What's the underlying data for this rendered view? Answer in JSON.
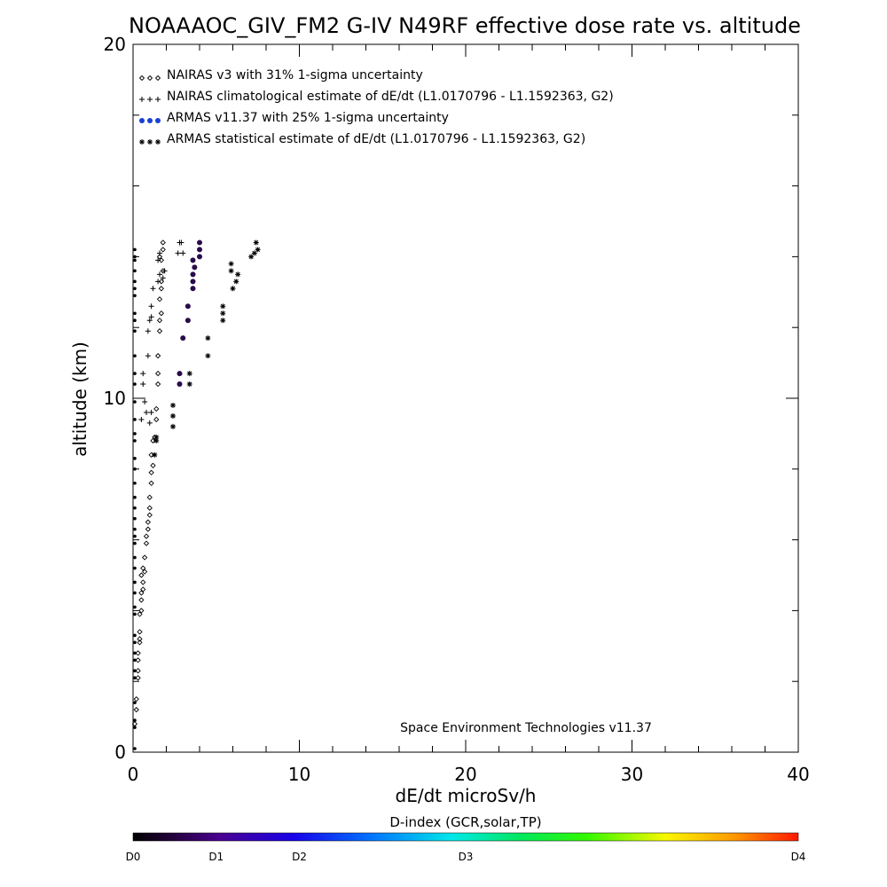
{
  "chart_data": {
    "type": "scatter",
    "title": "NOAAAOC_GIV_FM2 G-IV   N49RF  effective dose rate vs. altitude",
    "xlabel": "dE/dt microSv/h",
    "ylabel": "altitude (km)",
    "xlim": [
      0,
      40
    ],
    "ylim": [
      0,
      20
    ],
    "x_ticks": [
      "0",
      "10",
      "20",
      "30",
      "40"
    ],
    "y_ticks": [
      "0",
      "10",
      "20"
    ],
    "legend": [
      {
        "text": "NAIRAS v3 with 31% 1-sigma uncertainty",
        "marker": "diamond",
        "glyph": "◇◇◇",
        "color": "#000000"
      },
      {
        "text": "NAIRAS climatological estimate of dE/dt (L1.0170796 - L1.1592363, G2)",
        "marker": "plus",
        "glyph": "+++",
        "color": "#000000"
      },
      {
        "text": "ARMAS v11.37 with 25% 1-sigma uncertainty",
        "marker": "dot",
        "glyph": "●●●",
        "color": "#1a3fd6"
      },
      {
        "text": "ARMAS statistical estimate of dE/dt (L1.0170796 - L1.1592363, G2)",
        "marker": "asterisk",
        "glyph": "***",
        "color": "#000000"
      }
    ],
    "legend_position": "top-left",
    "annotation": "Space Environment Technologies v11.37",
    "colorbar": {
      "title": "D-index (GCR,solar,TP)",
      "labels": [
        {
          "text": "D0",
          "value": 0
        },
        {
          "text": "D1",
          "value": 0.125
        },
        {
          "text": "D2",
          "value": 0.25
        },
        {
          "text": "D3",
          "value": 0.5
        },
        {
          "text": "D4",
          "value": 1.0
        }
      ]
    },
    "series": [
      {
        "name": "NAIRAS v3 with 31% 1-sigma uncertainty",
        "marker": "diamond",
        "color": "#000000",
        "points": [
          [
            0.1,
            0.8
          ],
          [
            0.2,
            1.2
          ],
          [
            0.2,
            1.5
          ],
          [
            0.3,
            2.1
          ],
          [
            0.3,
            2.3
          ],
          [
            0.3,
            2.6
          ],
          [
            0.3,
            2.8
          ],
          [
            0.4,
            3.1
          ],
          [
            0.4,
            3.2
          ],
          [
            0.4,
            3.4
          ],
          [
            0.4,
            3.9
          ],
          [
            0.5,
            4.0
          ],
          [
            0.5,
            4.3
          ],
          [
            0.5,
            4.5
          ],
          [
            0.6,
            4.6
          ],
          [
            0.6,
            4.8
          ],
          [
            0.5,
            5.0
          ],
          [
            0.6,
            5.2
          ],
          [
            0.7,
            5.1
          ],
          [
            0.7,
            5.5
          ],
          [
            0.8,
            5.9
          ],
          [
            0.8,
            6.1
          ],
          [
            0.9,
            6.3
          ],
          [
            0.9,
            6.5
          ],
          [
            1.0,
            6.7
          ],
          [
            1.0,
            6.9
          ],
          [
            1.0,
            7.2
          ],
          [
            1.1,
            7.6
          ],
          [
            1.1,
            7.9
          ],
          [
            1.2,
            8.1
          ],
          [
            1.1,
            8.4
          ],
          [
            1.2,
            8.8
          ],
          [
            1.3,
            8.9
          ],
          [
            1.4,
            9.4
          ],
          [
            1.4,
            9.7
          ],
          [
            1.5,
            10.4
          ],
          [
            1.5,
            10.7
          ],
          [
            1.5,
            11.2
          ],
          [
            1.6,
            11.9
          ],
          [
            1.6,
            12.2
          ],
          [
            1.7,
            12.4
          ],
          [
            1.6,
            12.8
          ],
          [
            1.7,
            13.1
          ],
          [
            1.7,
            13.3
          ],
          [
            1.8,
            13.6
          ],
          [
            1.7,
            13.9
          ],
          [
            1.6,
            14.0
          ],
          [
            1.8,
            14.2
          ],
          [
            1.8,
            14.4
          ]
        ]
      },
      {
        "name": "NAIRAS climatological estimate of dE/dt (L1.0170796 - L1.1592363, G2)",
        "marker": "plus",
        "color": "#000000",
        "points": [
          [
            0.5,
            9.4
          ],
          [
            0.7,
            9.9
          ],
          [
            0.8,
            9.6
          ],
          [
            1.0,
            9.3
          ],
          [
            1.1,
            9.6
          ],
          [
            0.6,
            10.4
          ],
          [
            0.6,
            10.7
          ],
          [
            0.9,
            11.2
          ],
          [
            0.9,
            11.9
          ],
          [
            1.0,
            12.2
          ],
          [
            1.1,
            12.3
          ],
          [
            1.1,
            12.6
          ],
          [
            1.2,
            13.1
          ],
          [
            1.5,
            13.3
          ],
          [
            1.6,
            13.5
          ],
          [
            1.8,
            13.4
          ],
          [
            1.9,
            13.6
          ],
          [
            1.5,
            13.9
          ],
          [
            1.6,
            14.1
          ],
          [
            2.7,
            14.1
          ],
          [
            2.8,
            14.4
          ],
          [
            3.0,
            14.1
          ],
          [
            2.9,
            14.4
          ]
        ]
      },
      {
        "name": "ARMAS v11.37 with 25% 1-sigma uncertainty",
        "marker": "dot",
        "color": "#2a0a4a",
        "points": [
          [
            2.8,
            10.4
          ],
          [
            2.8,
            10.7
          ],
          [
            3.0,
            11.7
          ],
          [
            3.3,
            12.2
          ],
          [
            3.3,
            12.6
          ],
          [
            3.6,
            13.1
          ],
          [
            3.6,
            13.3
          ],
          [
            3.6,
            13.5
          ],
          [
            3.7,
            13.7
          ],
          [
            3.6,
            13.9
          ],
          [
            4.0,
            14.0
          ],
          [
            4.0,
            14.2
          ],
          [
            4.0,
            14.4
          ]
        ]
      },
      {
        "name": "ARMAS statistical estimate of dE/dt (L1.0170796 - L1.1592363, G2)",
        "marker": "asterisk",
        "color": "#000000",
        "points": [
          [
            1.3,
            8.4
          ],
          [
            1.4,
            8.8
          ],
          [
            1.4,
            8.9
          ],
          [
            2.4,
            9.2
          ],
          [
            2.4,
            9.5
          ],
          [
            2.4,
            9.8
          ],
          [
            3.4,
            10.4
          ],
          [
            3.4,
            10.7
          ],
          [
            4.5,
            11.2
          ],
          [
            4.5,
            11.7
          ],
          [
            5.4,
            12.2
          ],
          [
            5.4,
            12.4
          ],
          [
            5.4,
            12.6
          ],
          [
            6.0,
            13.1
          ],
          [
            6.2,
            13.3
          ],
          [
            6.3,
            13.5
          ],
          [
            5.9,
            13.6
          ],
          [
            5.9,
            13.8
          ],
          [
            7.1,
            14.0
          ],
          [
            7.3,
            14.1
          ],
          [
            7.5,
            14.2
          ],
          [
            7.4,
            14.4
          ]
        ]
      },
      {
        "name": "",
        "marker": "dot-small",
        "color": "#000000",
        "points": [
          [
            0,
            0.1
          ],
          [
            0,
            0.7
          ],
          [
            0,
            0.9
          ],
          [
            0,
            1.4
          ],
          [
            0,
            2.1
          ],
          [
            0,
            2.3
          ],
          [
            0,
            2.6
          ],
          [
            0,
            2.8
          ],
          [
            0,
            3.1
          ],
          [
            0,
            3.3
          ],
          [
            0,
            3.9
          ],
          [
            0,
            4.1
          ],
          [
            0,
            4.5
          ],
          [
            0,
            4.8
          ],
          [
            0,
            5.2
          ],
          [
            0,
            5.5
          ],
          [
            0,
            5.9
          ],
          [
            0,
            6.1
          ],
          [
            0,
            6.3
          ],
          [
            0,
            6.6
          ],
          [
            0,
            6.9
          ],
          [
            0,
            7.2
          ],
          [
            0,
            7.6
          ],
          [
            0,
            8.0
          ],
          [
            0,
            8.3
          ],
          [
            0,
            8.8
          ],
          [
            0,
            9.0
          ],
          [
            0,
            9.4
          ],
          [
            0,
            9.9
          ],
          [
            0,
            10.4
          ],
          [
            0,
            10.7
          ],
          [
            0,
            11.2
          ],
          [
            0,
            11.9
          ],
          [
            0,
            12.2
          ],
          [
            0,
            12.4
          ],
          [
            0,
            12.9
          ],
          [
            0,
            13.1
          ],
          [
            0,
            13.3
          ],
          [
            0,
            13.6
          ],
          [
            0,
            13.9
          ],
          [
            0,
            14.0
          ],
          [
            0,
            14.2
          ]
        ]
      }
    ]
  }
}
